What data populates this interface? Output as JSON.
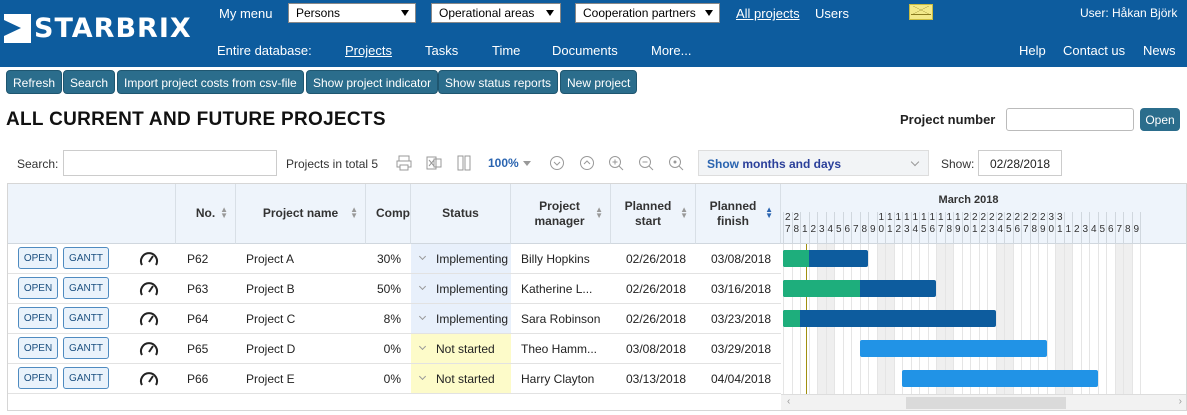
{
  "top": {
    "logo_text": "STARBRIX",
    "my_menu": "My menu",
    "persons": "Persons",
    "operational_areas": "Operational areas",
    "cooperation_partners": "Cooperation partners",
    "all_projects": "All projects",
    "users": "Users",
    "user": "User: Håkan Björk",
    "entire_database": "Entire database:",
    "nav": [
      "Projects",
      "Tasks",
      "Time",
      "Documents",
      "More..."
    ],
    "help": "Help",
    "contact_us": "Contact us",
    "news": "News"
  },
  "toolbar": {
    "refresh": "Refresh",
    "search": "Search",
    "import": "Import project costs from csv-file",
    "show_indicator": "Show project indicator",
    "show_status": "Show status reports",
    "new_project": "New project"
  },
  "page_title": "ALL CURRENT AND FUTURE PROJECTS",
  "project_number_label": "Project number",
  "open_label": "Open",
  "search_label": "Search:",
  "projects_total": "Projects in total 5",
  "zoom": "100%",
  "show_mode_1": "Show",
  "show_mode_2": "months and days",
  "show_label": "Show:",
  "show_date": "02/28/2018",
  "columns": {
    "no": "No.",
    "name": "Project name",
    "comp": "Comp",
    "status": "Status",
    "manager": "Project manager",
    "start": "Planned start",
    "finish": "Planned finish"
  },
  "row_buttons": {
    "open": "OPEN",
    "gantt": "GANTT"
  },
  "gantt_month": "March 2018",
  "gantt_days": [
    [
      "2",
      "7"
    ],
    [
      "2",
      "8"
    ],
    [
      "",
      "1"
    ],
    [
      "",
      "2"
    ],
    [
      "",
      "3"
    ],
    [
      "",
      "4"
    ],
    [
      "",
      "5"
    ],
    [
      "",
      "6"
    ],
    [
      "",
      "7"
    ],
    [
      "",
      "8"
    ],
    [
      "",
      "9"
    ],
    [
      "1",
      "0"
    ],
    [
      "1",
      "1"
    ],
    [
      "1",
      "2"
    ],
    [
      "1",
      "3"
    ],
    [
      "1",
      "4"
    ],
    [
      "1",
      "5"
    ],
    [
      "1",
      "6"
    ],
    [
      "1",
      "7"
    ],
    [
      "1",
      "8"
    ],
    [
      "1",
      "9"
    ],
    [
      "2",
      "0"
    ],
    [
      "2",
      "1"
    ],
    [
      "2",
      "2"
    ],
    [
      "2",
      "3"
    ],
    [
      "2",
      "4"
    ],
    [
      "2",
      "5"
    ],
    [
      "2",
      "6"
    ],
    [
      "2",
      "7"
    ],
    [
      "2",
      "8"
    ],
    [
      "2",
      "9"
    ],
    [
      "3",
      "0"
    ],
    [
      "3",
      "1"
    ],
    [
      "",
      "1"
    ],
    [
      "",
      "2"
    ],
    [
      "",
      "3"
    ],
    [
      "",
      "4"
    ],
    [
      "",
      "5"
    ],
    [
      "",
      "6"
    ],
    [
      "",
      "7"
    ],
    [
      "",
      "8"
    ],
    [
      "",
      "9"
    ],
    [
      "",
      ""
    ]
  ],
  "rows": [
    {
      "no": "P62",
      "name": "Project A",
      "comp": "30%",
      "status": "Implementing",
      "manager": "Billy Hopkins",
      "start": "02/26/2018",
      "finish": "03/08/2018"
    },
    {
      "no": "P63",
      "name": "Project B",
      "comp": "50%",
      "status": "Implementing",
      "manager": "Katherine L...",
      "start": "02/26/2018",
      "finish": "03/16/2018"
    },
    {
      "no": "P64",
      "name": "Project C",
      "comp": "8%",
      "status": "Implementing",
      "manager": "Sara Robinson",
      "start": "02/26/2018",
      "finish": "03/23/2018"
    },
    {
      "no": "P65",
      "name": "Project D",
      "comp": "0%",
      "status": "Not started",
      "manager": "Theo Hamm...",
      "start": "03/08/2018",
      "finish": "03/29/2018"
    },
    {
      "no": "P66",
      "name": "Project E",
      "comp": "0%",
      "status": "Not started",
      "manager": "Harry Clayton",
      "start": "03/13/2018",
      "finish": "04/04/2018"
    }
  ],
  "colors": {
    "header_bg": "#0d5c9e",
    "button_bg": "#2b6d8c",
    "implementing_bg": "#e8f0fb",
    "not_started_bg": "#fdfbc9",
    "bar_dark": "#0d5c9e",
    "bar_light": "#2193e6",
    "bar_progress": "#1eae7c"
  }
}
